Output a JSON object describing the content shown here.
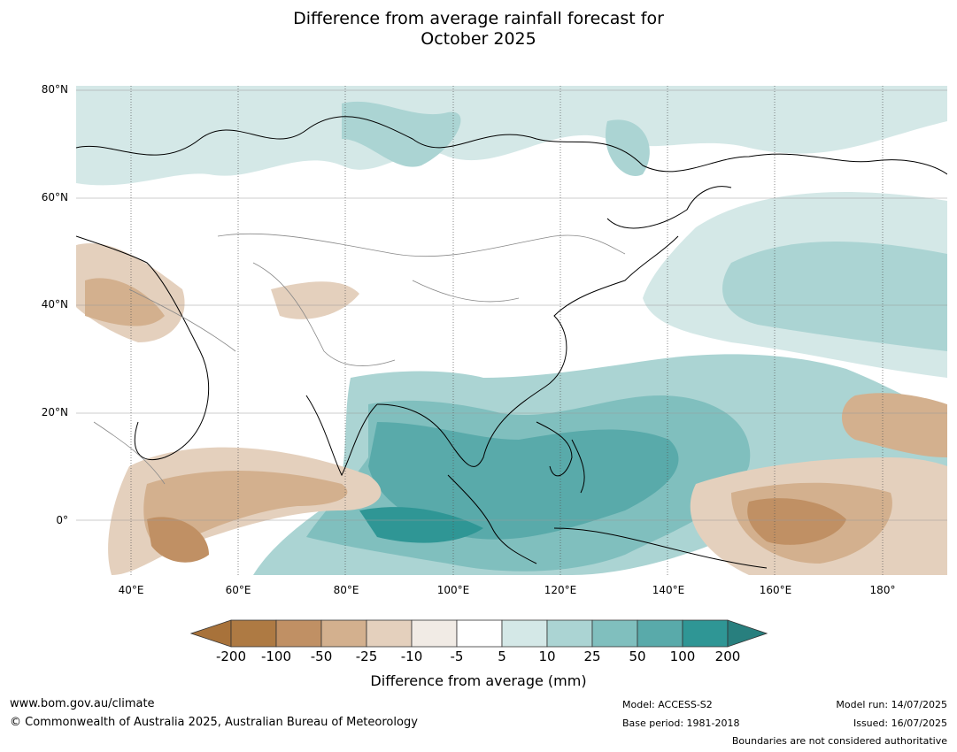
{
  "title_line1": "Difference from average rainfall forecast for",
  "title_line2": "October 2025",
  "lat_labels": [
    "80°N",
    "60°N",
    "40°N",
    "20°N",
    "0°"
  ],
  "lon_labels": [
    "40°E",
    "60°E",
    "80°E",
    "100°E",
    "120°E",
    "140°E",
    "160°E",
    "180°"
  ],
  "legend": {
    "title": "Difference from average (mm)",
    "ticks": [
      "-200",
      "-100",
      "-50",
      "-25",
      "-10",
      "-5",
      "5",
      "10",
      "25",
      "50",
      "100",
      "200"
    ],
    "colors": [
      "#a8723a",
      "#ae7a43",
      "#c09064",
      "#d3b08e",
      "#e4d0bd",
      "#f1ebe5",
      "#ffffff",
      "#d4e8e7",
      "#abd4d3",
      "#80bfbe",
      "#59aaaa",
      "#2f9695",
      "#287f7e"
    ]
  },
  "footer": {
    "url": "www.bom.gov.au/climate",
    "copyright": "© Commonwealth of Australia 2025, Australian Bureau of Meteorology",
    "model": "Model: ACCESS-S2",
    "base_period": "Base period: 1981-2018",
    "model_run": "Model run: 14/07/2025",
    "issued": "Issued: 16/07/2025",
    "disclaimer": "Boundaries are not considered authoritative"
  }
}
